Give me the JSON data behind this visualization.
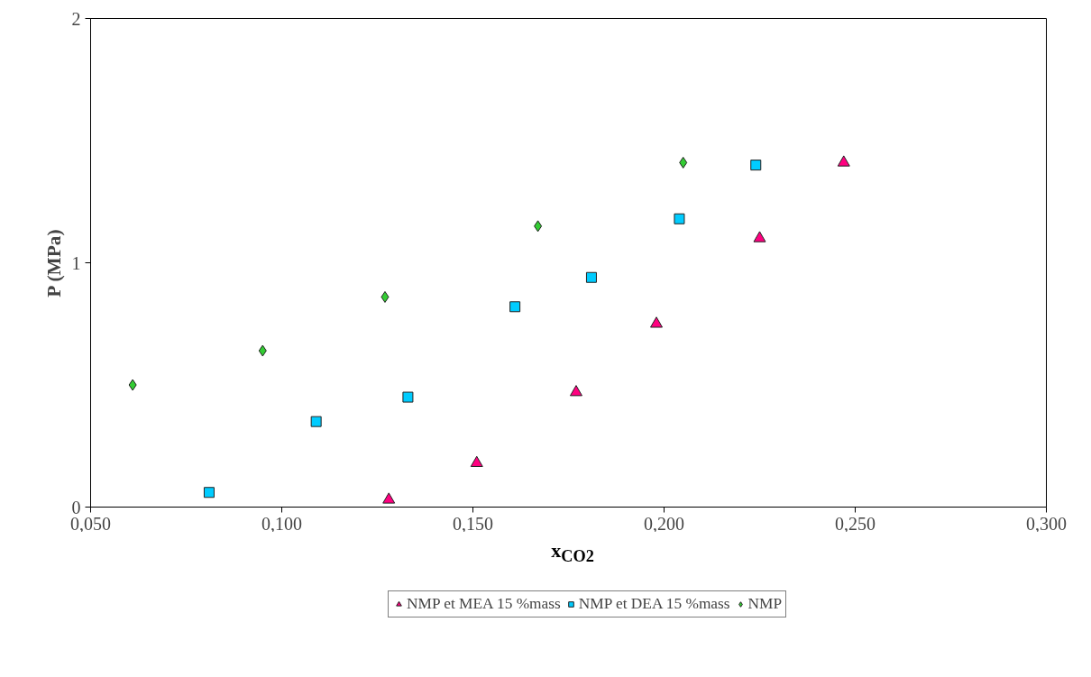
{
  "chart_data": {
    "type": "scatter",
    "xlabel": "x$_{CO2}$",
    "ylabel": "P (MPa)",
    "xlim": [
      0.05,
      0.3
    ],
    "ylim": [
      0,
      2
    ],
    "xticks": [
      {
        "value": 0.05,
        "label": "0,050"
      },
      {
        "value": 0.1,
        "label": "0,100"
      },
      {
        "value": 0.15,
        "label": "0,150"
      },
      {
        "value": 0.2,
        "label": "0,200"
      },
      {
        "value": 0.25,
        "label": "0,250"
      },
      {
        "value": 0.3,
        "label": "0,300"
      }
    ],
    "yticks": [
      0,
      1,
      2
    ],
    "grid": false,
    "legend": "bottom",
    "series": [
      {
        "name": "NMP et MEA 15 %mass",
        "color": "#ff0080",
        "marker": "triangle",
        "x": [
          0.128,
          0.151,
          0.177,
          0.198,
          0.225,
          0.247
        ],
        "values": [
          0.03,
          0.18,
          0.47,
          0.75,
          1.1,
          1.41
        ]
      },
      {
        "name": "NMP et DEA 15 %mass",
        "color": "#00ccff",
        "marker": "square",
        "x": [
          0.081,
          0.109,
          0.133,
          0.161,
          0.181,
          0.204,
          0.224
        ],
        "values": [
          0.06,
          0.35,
          0.45,
          0.82,
          0.94,
          1.18,
          1.4
        ]
      },
      {
        "name": "NMP",
        "color": "#33cc33",
        "marker": "diamond",
        "x": [
          0.061,
          0.095,
          0.127,
          0.167,
          0.205
        ],
        "values": [
          0.5,
          0.64,
          0.86,
          1.15,
          1.41
        ]
      }
    ]
  }
}
